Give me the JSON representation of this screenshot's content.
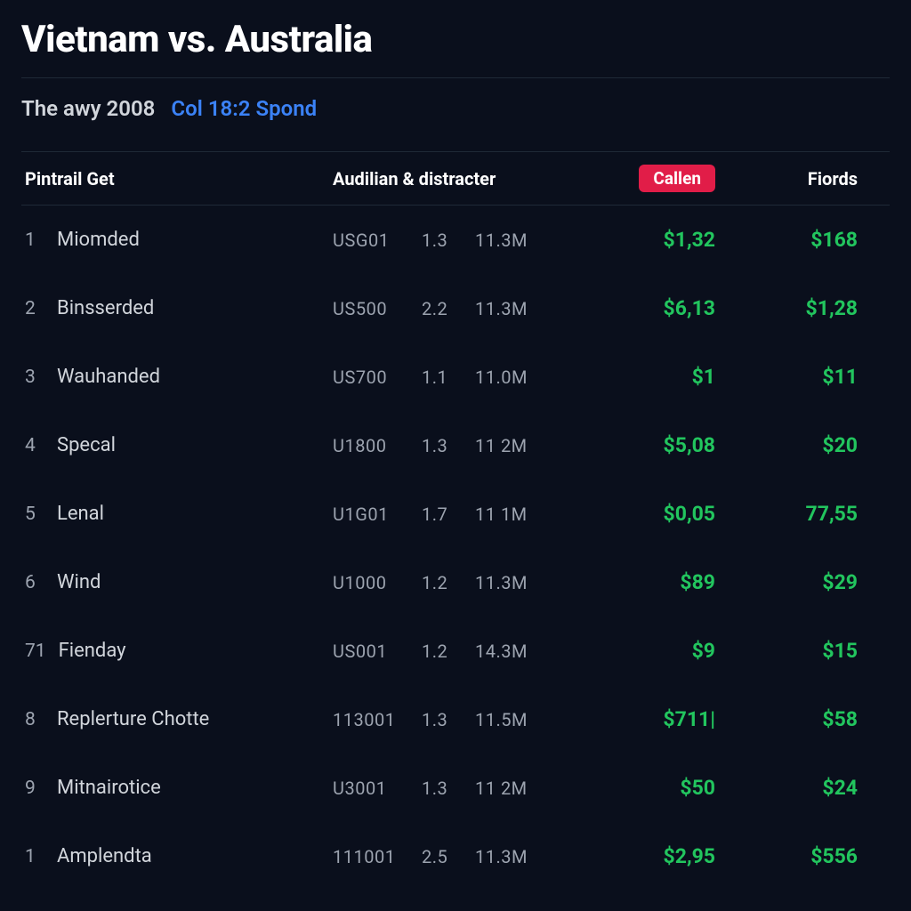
{
  "header": {
    "title": "Vietnam vs. Australia",
    "sub_left": "The awy 2008",
    "sub_right": "Col 18:2 Spond"
  },
  "table": {
    "columns": {
      "name": "Pintrail Get",
      "aud": "Audilian & distracter",
      "callen": "Callen",
      "fiords": "Fiords"
    },
    "rows": [
      {
        "rank": "1",
        "name": "Miomded",
        "a": "USG01",
        "b": "1.3",
        "c": "11.3M",
        "callen": "$1,32",
        "fiords": "$168"
      },
      {
        "rank": "2",
        "name": "Binsserded",
        "a": "US500",
        "b": "2.2",
        "c": "11.3M",
        "callen": "$6,13",
        "fiords": "$1,28"
      },
      {
        "rank": "3",
        "name": "Wauhanded",
        "a": "US700",
        "b": "1.1",
        "c": "11.0M",
        "callen": "$1",
        "fiords": "$11"
      },
      {
        "rank": "4",
        "name": "Specal",
        "a": "U1800",
        "b": "1.3",
        "c": "11 2M",
        "callen": "$5,08",
        "fiords": "$20"
      },
      {
        "rank": "5",
        "name": "Lenal",
        "a": "U1G01",
        "b": "1.7",
        "c": "11 1M",
        "callen": "$0,05",
        "fiords": "77,55"
      },
      {
        "rank": "6",
        "name": "Wind",
        "a": "U1000",
        "b": "1.2",
        "c": "11.3M",
        "callen": "$89",
        "fiords": "$29"
      },
      {
        "rank": "71",
        "name": "Fienday",
        "a": "US001",
        "b": "1.2",
        "c": "14.3M",
        "callen": "$9",
        "fiords": "$15"
      },
      {
        "rank": "8",
        "name": "Replerture Chotte",
        "a": "113001",
        "b": "1.3",
        "c": "11.5M",
        "callen": "$711|",
        "fiords": "$58"
      },
      {
        "rank": "9",
        "name": "Mitnairotice",
        "a": "U3001",
        "b": "1.3",
        "c": "11 2M",
        "callen": "$50",
        "fiords": "$24"
      },
      {
        "rank": "1",
        "name": "Amplendta",
        "a": "111001",
        "b": "2.5",
        "c": "11.3M",
        "callen": "$2,95",
        "fiords": "$556"
      }
    ]
  },
  "styling": {
    "background_color": "#0a0f1c",
    "text_primary": "#ffffff",
    "text_secondary": "#d1d5db",
    "text_muted": "#9ca3af",
    "accent_link": "#3b82f6",
    "accent_green": "#22c55e",
    "accent_red": "#e11d48",
    "border_color": "#1f2937"
  }
}
